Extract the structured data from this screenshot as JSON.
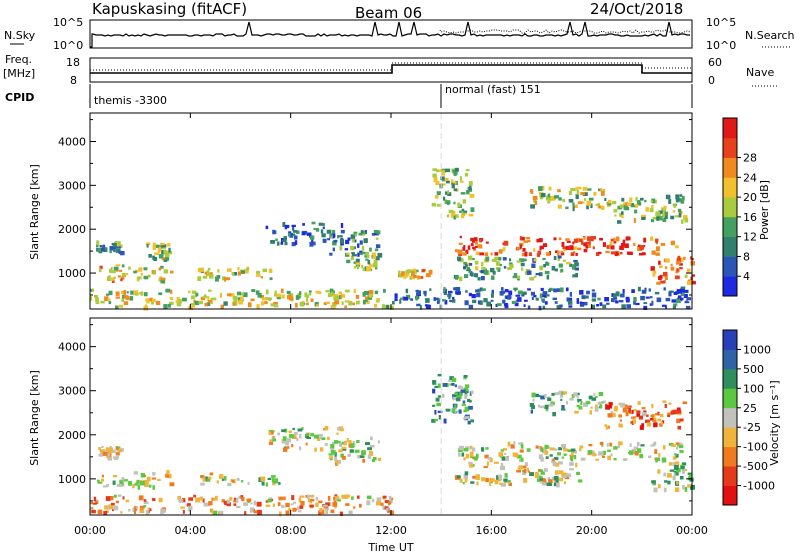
{
  "header": {
    "station": "Kapuskasing (fitACF)",
    "beam": "Beam 06",
    "date": "24/Oct/2018"
  },
  "nsky_panel": {
    "left_label": "N.Sky",
    "right_label": "N.Search",
    "left_ticks": [
      "10^5",
      "10^0"
    ],
    "right_ticks": [
      "10^5",
      "10^0"
    ]
  },
  "freq_panel": {
    "left_label_line1": "Freq.",
    "left_label_line2": "[MHz]",
    "right_label": "Nave",
    "left_ticks": [
      "18",
      "8"
    ],
    "right_ticks": [
      "60",
      "0"
    ]
  },
  "cpid_panel": {
    "label": "CPID",
    "segments": [
      {
        "name": "themis -3300",
        "start_hour": 0
      },
      {
        "name": "normal (fast) 151",
        "start_hour": 14
      }
    ]
  },
  "chart_data": [
    {
      "type": "heatmap",
      "name": "power",
      "xlabel": "",
      "ylabel": "Slant Range [km]",
      "xlim": [
        0,
        24
      ],
      "ylim": [
        180,
        4650
      ],
      "yticks": [
        1000,
        2000,
        3000,
        4000
      ],
      "colorbar": {
        "title": "Power [dB]",
        "tick_labels": [
          "4",
          "8",
          "12",
          "16",
          "20",
          "24",
          "28"
        ],
        "colors": [
          "#1e2ae0",
          "#2c55b8",
          "#337f6e",
          "#43a060",
          "#a8cc3c",
          "#f2c02c",
          "#f08a1e",
          "#e8401c",
          "#e01818"
        ]
      },
      "blobs": [
        {
          "t0": 0.0,
          "t1": 12.0,
          "r0": 250,
          "r1": 650,
          "v": 0.55
        },
        {
          "t0": 0.2,
          "t1": 3.2,
          "r0": 850,
          "r1": 1200,
          "v": 0.6
        },
        {
          "t0": 4.2,
          "t1": 7.5,
          "r0": 900,
          "r1": 1150,
          "v": 0.55
        },
        {
          "t0": 0.2,
          "t1": 1.2,
          "r0": 1500,
          "r1": 1750,
          "v": 0.35
        },
        {
          "t0": 2.2,
          "t1": 3.2,
          "r0": 1300,
          "r1": 1700,
          "v": 0.45
        },
        {
          "t0": 7.0,
          "t1": 10.0,
          "r0": 1700,
          "r1": 2200,
          "v": 0.2
        },
        {
          "t0": 9.5,
          "t1": 11.5,
          "r0": 1400,
          "r1": 2000,
          "v": 0.3
        },
        {
          "t0": 10.2,
          "t1": 11.6,
          "r0": 1100,
          "r1": 1500,
          "v": 0.45
        },
        {
          "t0": 12.2,
          "t1": 13.5,
          "r0": 900,
          "r1": 1100,
          "v": 0.6
        },
        {
          "t0": 13.6,
          "t1": 15.2,
          "r0": 2300,
          "r1": 3400,
          "v": 0.45
        },
        {
          "t0": 14.5,
          "t1": 23.5,
          "r0": 1450,
          "r1": 1850,
          "v": 0.85
        },
        {
          "t0": 17.5,
          "t1": 20.5,
          "r0": 2500,
          "r1": 3000,
          "v": 0.5
        },
        {
          "t0": 20.5,
          "t1": 23.7,
          "r0": 2200,
          "r1": 2800,
          "v": 0.45
        },
        {
          "t0": 22.3,
          "t1": 24.0,
          "r0": 800,
          "r1": 1400,
          "v": 0.75
        },
        {
          "t0": 14.5,
          "t1": 19.5,
          "r0": 900,
          "r1": 1400,
          "v": 0.35
        },
        {
          "t0": 12.0,
          "t1": 24.0,
          "r0": 250,
          "r1": 700,
          "v": 0.15
        }
      ]
    },
    {
      "type": "heatmap",
      "name": "velocity",
      "xlabel": "Time UT",
      "ylabel": "Slant Range [km]",
      "xlim": [
        0,
        24
      ],
      "ylim": [
        180,
        4650
      ],
      "yticks": [
        1000,
        2000,
        3000,
        4000
      ],
      "xtick_labels": [
        "00:00",
        "04:00",
        "08:00",
        "12:00",
        "16:00",
        "20:00",
        "00:00"
      ],
      "colorbar": {
        "title": "Velocity [m s⁻¹]",
        "tick_labels": [
          "1000",
          "500",
          "100",
          "25",
          "-25",
          "-100",
          "-500",
          "-1000"
        ],
        "colors": [
          "#2840b8",
          "#2f63a8",
          "#2e8e5e",
          "#5cc840",
          "#c2c2bc",
          "#f0b43a",
          "#f07a1e",
          "#e43a1a",
          "#e21010"
        ]
      },
      "blobs": [
        {
          "t0": 0.0,
          "t1": 12.0,
          "r0": 250,
          "r1": 650,
          "v": 0.65
        },
        {
          "t0": 0.2,
          "t1": 3.2,
          "r0": 850,
          "r1": 1200,
          "v": 0.55
        },
        {
          "t0": 4.2,
          "t1": 7.5,
          "r0": 900,
          "r1": 1150,
          "v": 0.5
        },
        {
          "t0": 0.2,
          "t1": 1.2,
          "r0": 1500,
          "r1": 1750,
          "v": 0.6
        },
        {
          "t0": 7.0,
          "t1": 10.0,
          "r0": 1700,
          "r1": 2200,
          "v": 0.5
        },
        {
          "t0": 9.5,
          "t1": 11.5,
          "r0": 1400,
          "r1": 2000,
          "v": 0.5
        },
        {
          "t0": 13.6,
          "t1": 15.2,
          "r0": 2300,
          "r1": 3400,
          "v": 0.3
        },
        {
          "t0": 14.5,
          "t1": 23.5,
          "r0": 1450,
          "r1": 1850,
          "v": 0.5
        },
        {
          "t0": 17.5,
          "t1": 20.5,
          "r0": 2500,
          "r1": 3000,
          "v": 0.4
        },
        {
          "t0": 20.5,
          "t1": 23.7,
          "r0": 2200,
          "r1": 2800,
          "v": 0.75
        },
        {
          "t0": 22.3,
          "t1": 24.0,
          "r0": 800,
          "r1": 1400,
          "v": 0.45
        },
        {
          "t0": 14.5,
          "t1": 19.5,
          "r0": 900,
          "r1": 1400,
          "v": 0.5
        }
      ]
    }
  ]
}
